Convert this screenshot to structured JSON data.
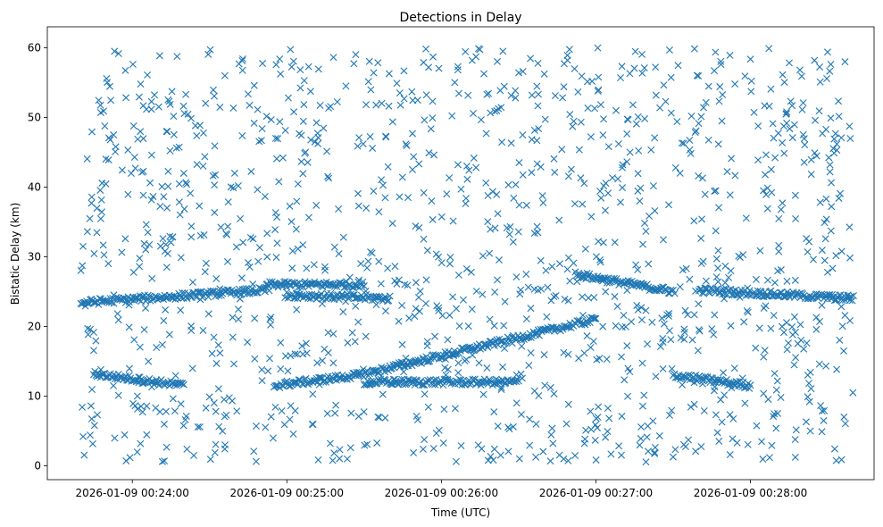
{
  "chart_data": {
    "type": "scatter",
    "title": "Detections in Delay",
    "xlabel": "Time (UTC)",
    "ylabel": "Bistatic Delay (km)",
    "marker": "x",
    "color": "#1f77b4",
    "grid": false,
    "legend": "none",
    "xlim": [
      "2026-01-09 00:23:27",
      "2026-01-09 00:28:48"
    ],
    "ylim": [
      -2,
      63
    ],
    "xticks": [
      "2026-01-09 00:24:00",
      "2026-01-09 00:25:00",
      "2026-01-09 00:26:00",
      "2026-01-09 00:27:00",
      "2026-01-09 00:28:00"
    ],
    "yticks": [
      0,
      10,
      20,
      30,
      40,
      50,
      60
    ],
    "data_range": {
      "x": [
        "2026-01-09 00:23:40",
        "2026-01-09 00:28:40"
      ],
      "y": [
        0.5,
        60
      ]
    },
    "tracks": [
      {
        "x_start": "2026-01-09 00:23:40",
        "x_end": "2026-01-09 00:24:52",
        "y_start": 23.4,
        "y_end": 25.2
      },
      {
        "x_start": "2026-01-09 00:24:52",
        "x_end": "2026-01-09 00:25:30",
        "y_start": 26.0,
        "y_end": 26.0
      },
      {
        "x_start": "2026-01-09 00:25:00",
        "x_end": "2026-01-09 00:25:40",
        "y_start": 24.5,
        "y_end": 24.0
      },
      {
        "x_start": "2026-01-09 00:26:52",
        "x_end": "2026-01-09 00:27:30",
        "y_start": 27.5,
        "y_end": 25.0
      },
      {
        "x_start": "2026-01-09 00:27:40",
        "x_end": "2026-01-09 00:28:40",
        "y_start": 25.2,
        "y_end": 24.0
      },
      {
        "x_start": "2026-01-09 00:23:45",
        "x_end": "2026-01-09 00:24:20",
        "y_start": 13.2,
        "y_end": 11.5
      },
      {
        "x_start": "2026-01-09 00:24:55",
        "x_end": "2026-01-09 00:25:28",
        "y_start": 11.5,
        "y_end": 13.0
      },
      {
        "x_start": "2026-01-09 00:25:28",
        "x_end": "2026-01-09 00:27:00",
        "y_start": 13.0,
        "y_end": 21.0
      },
      {
        "x_start": "2026-01-09 00:25:30",
        "x_end": "2026-01-09 00:26:30",
        "y_start": 12.0,
        "y_end": 12.0
      },
      {
        "x_start": "2026-01-09 00:27:30",
        "x_end": "2026-01-09 00:28:00",
        "y_start": 13.0,
        "y_end": 11.5
      }
    ]
  }
}
